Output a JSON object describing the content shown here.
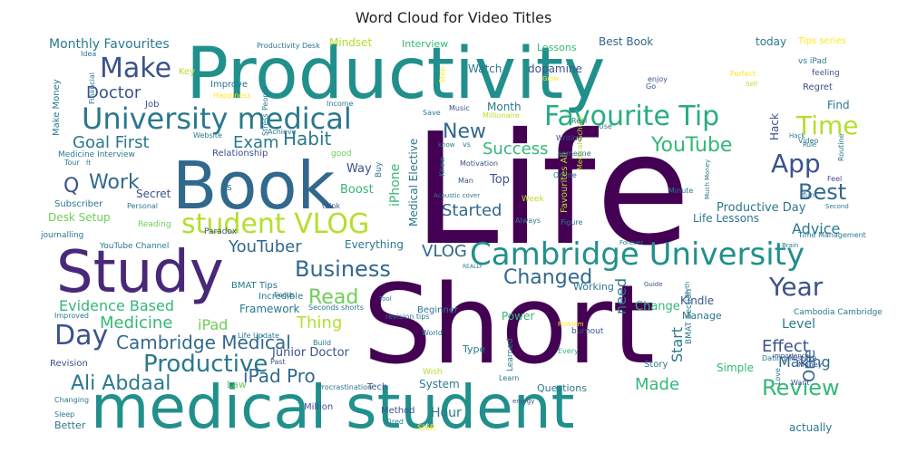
{
  "title": "Word Cloud for Video Titles",
  "words": [
    {
      "text": "Life",
      "color": "#440154"
    },
    {
      "text": "Short",
      "color": "#440154"
    },
    {
      "text": "Productivity",
      "color": "#21908c"
    },
    {
      "text": "medical student",
      "color": "#21908c"
    },
    {
      "text": "Book",
      "color": "#31688e"
    },
    {
      "text": "Study",
      "color": "#482878"
    },
    {
      "text": "Cambridge University",
      "color": "#21908c"
    },
    {
      "text": "University medical",
      "color": "#2a788e"
    },
    {
      "text": "student VLOG",
      "color": "#b5de2b"
    },
    {
      "text": "Make",
      "color": "#3b528b"
    },
    {
      "text": "Favourite Tip",
      "color": "#27ad81"
    },
    {
      "text": "Time",
      "color": "#b5de2b"
    },
    {
      "text": "App",
      "color": "#3b528b"
    },
    {
      "text": "Business",
      "color": "#31688e"
    },
    {
      "text": "Year",
      "color": "#3b528b"
    },
    {
      "text": "Day",
      "color": "#3b528b"
    },
    {
      "text": "Productive",
      "color": "#2a788e"
    },
    {
      "text": "Review",
      "color": "#35b779"
    },
    {
      "text": "Changed",
      "color": "#31688e"
    },
    {
      "text": "New",
      "color": "#31688e"
    },
    {
      "text": "YouTube",
      "color": "#35b779"
    },
    {
      "text": "Best",
      "color": "#31688e"
    },
    {
      "text": "Read",
      "color": "#6ece58"
    },
    {
      "text": "Work",
      "color": "#31688e"
    },
    {
      "text": "Habit",
      "color": "#2a788e"
    },
    {
      "text": "Ali Abdaal",
      "color": "#2a788e"
    },
    {
      "text": "iPad Pro",
      "color": "#31688e"
    },
    {
      "text": "Cambridge Medical",
      "color": "#31688e"
    },
    {
      "text": "Goal First",
      "color": "#2a788e"
    },
    {
      "text": "Exam",
      "color": "#2a788e"
    },
    {
      "text": "Success",
      "color": "#35b779"
    },
    {
      "text": "Started",
      "color": "#31688e"
    },
    {
      "text": "Advice",
      "color": "#2a788e"
    },
    {
      "text": "YouTuber",
      "color": "#31688e"
    },
    {
      "text": "VLOG",
      "color": "#31688e"
    },
    {
      "text": "Effect",
      "color": "#3b528b"
    },
    {
      "text": "Evidence Based",
      "color": "#35b779"
    },
    {
      "text": "Medicine",
      "color": "#35b779"
    },
    {
      "text": "Thing",
      "color": "#b5de2b"
    },
    {
      "text": "Doctor",
      "color": "#3b528b"
    },
    {
      "text": "Monthly Favourites",
      "color": "#2a788e"
    },
    {
      "text": "One",
      "color": "#31688e"
    },
    {
      "text": "Made",
      "color": "#35b779"
    },
    {
      "text": "Making",
      "color": "#31688e"
    },
    {
      "text": "Start",
      "color": "#2a788e"
    },
    {
      "text": "iPad",
      "color": "#6ece58"
    },
    {
      "text": "Q",
      "color": "#3b528b"
    },
    {
      "text": "Level",
      "color": "#2a788e"
    },
    {
      "text": "Best Book",
      "color": "#31688e"
    },
    {
      "text": "Productive Day",
      "color": "#2a788e"
    },
    {
      "text": "Life Lessons",
      "color": "#2a788e"
    },
    {
      "text": "need",
      "color": "#2a788e"
    },
    {
      "text": "Hour",
      "color": "#2a788e"
    },
    {
      "text": "Framework",
      "color": "#2a788e"
    },
    {
      "text": "Junior Doctor",
      "color": "#3b528b"
    },
    {
      "text": "iPhone",
      "color": "#35b779"
    },
    {
      "text": "Medical Elective",
      "color": "#2a788e"
    },
    {
      "text": "Month",
      "color": "#2a788e"
    },
    {
      "text": "Watch",
      "color": "#2a788e"
    },
    {
      "text": "dopamine",
      "color": "#3b528b"
    },
    {
      "text": "Top",
      "color": "#3b528b"
    },
    {
      "text": "Boost",
      "color": "#35b779"
    },
    {
      "text": "Change",
      "color": "#35b779"
    },
    {
      "text": "Manage",
      "color": "#2a788e"
    },
    {
      "text": "Kindle",
      "color": "#3b528b"
    },
    {
      "text": "Everything",
      "color": "#2a788e"
    },
    {
      "text": "Desk Setup",
      "color": "#6ece58"
    },
    {
      "text": "Secret",
      "color": "#3b528b"
    },
    {
      "text": "Way",
      "color": "#3b528b"
    },
    {
      "text": "Mindset",
      "color": "#b5de2b"
    },
    {
      "text": "Interview",
      "color": "#35b779"
    },
    {
      "text": "Lessons",
      "color": "#35b779"
    },
    {
      "text": "Tips series",
      "color": "#fde725"
    },
    {
      "text": "today",
      "color": "#2a788e"
    },
    {
      "text": "Find",
      "color": "#2a788e"
    },
    {
      "text": "Hack",
      "color": "#3b528b"
    },
    {
      "text": "Questions",
      "color": "#2a788e"
    },
    {
      "text": "System",
      "color": "#2a788e"
    },
    {
      "text": "Type",
      "color": "#2a788e"
    },
    {
      "text": "Power",
      "color": "#35b779"
    },
    {
      "text": "Working",
      "color": "#2a788e"
    },
    {
      "text": "Beginner",
      "color": "#2a788e"
    },
    {
      "text": "Story",
      "color": "#2a788e"
    },
    {
      "text": "Simple",
      "color": "#35b779"
    },
    {
      "text": "actually",
      "color": "#2a788e"
    },
    {
      "text": "Method",
      "color": "#3b528b"
    },
    {
      "text": "Million",
      "color": "#3b528b"
    },
    {
      "text": "Better",
      "color": "#2a788e"
    },
    {
      "text": "Revision",
      "color": "#3b528b"
    },
    {
      "text": "Law",
      "color": "#6ece58"
    },
    {
      "text": "Incredible",
      "color": "#2a788e"
    },
    {
      "text": "BMAT Tips",
      "color": "#2a788e"
    },
    {
      "text": "Improve",
      "color": "#2a788e"
    },
    {
      "text": "Job",
      "color": "#3b528b"
    },
    {
      "text": "Make Money",
      "color": "#2a788e"
    },
    {
      "text": "Relationship",
      "color": "#3b528b"
    },
    {
      "text": "Medicine Interview",
      "color": "#2a788e"
    },
    {
      "text": "Subscriber",
      "color": "#2a788e"
    },
    {
      "text": "journalling",
      "color": "#2a788e"
    },
    {
      "text": "YouTube Channel",
      "color": "#2a788e"
    },
    {
      "text": "Reading",
      "color": "#6ece58"
    },
    {
      "text": "Paradox",
      "color": "#3b528b"
    },
    {
      "text": "Improved",
      "color": "#2a788e"
    },
    {
      "text": "Tech",
      "color": "#3b528b"
    },
    {
      "text": "Learned",
      "color": "#2a788e"
    },
    {
      "text": "Cambodia Cambridge",
      "color": "#2a788e"
    },
    {
      "text": "Routine",
      "color": "#2a788e"
    },
    {
      "text": "vs iPad",
      "color": "#2a788e"
    },
    {
      "text": "Regret",
      "color": "#3b528b"
    },
    {
      "text": "feeling",
      "color": "#3b528b"
    },
    {
      "text": "Perfect",
      "color": "#fde725"
    },
    {
      "text": "Productivity Desk",
      "color": "#2a788e"
    },
    {
      "text": "Key",
      "color": "#b5de2b"
    },
    {
      "text": "Idea",
      "color": "#2a788e"
    },
    {
      "text": "Happiness",
      "color": "#fde725"
    },
    {
      "text": "Financial",
      "color": "#2a788e"
    },
    {
      "text": "People",
      "color": "#2a788e"
    },
    {
      "text": "Stress",
      "color": "#2a788e"
    },
    {
      "text": "Website",
      "color": "#2a788e"
    },
    {
      "text": "Achieve",
      "color": "#2a788e"
    },
    {
      "text": "Income",
      "color": "#2a788e"
    },
    {
      "text": "Save",
      "color": "#2a788e"
    },
    {
      "text": "Music",
      "color": "#3b528b"
    },
    {
      "text": "Millionaire",
      "color": "#b5de2b"
    },
    {
      "text": "Motivation",
      "color": "#3b528b"
    },
    {
      "text": "Acoustic cover",
      "color": "#2a788e"
    },
    {
      "text": "Online",
      "color": "#2a788e"
    },
    {
      "text": "Writing",
      "color": "#3b528b"
    },
    {
      "text": "Medical School",
      "color": "#b5de2b"
    },
    {
      "text": "Favourites Ali",
      "color": "#b5de2b"
    },
    {
      "text": "Week",
      "color": "#b5de2b"
    },
    {
      "text": "Always",
      "color": "#2a788e"
    },
    {
      "text": "Figure",
      "color": "#2a788e"
    },
    {
      "text": "Minute",
      "color": "#2a788e"
    },
    {
      "text": "Time Management",
      "color": "#2a788e"
    },
    {
      "text": "Video",
      "color": "#2a788e"
    },
    {
      "text": "Feel",
      "color": "#3b528b"
    },
    {
      "text": "Second",
      "color": "#2a788e"
    },
    {
      "text": "Brain",
      "color": "#2a788e"
    },
    {
      "text": "Forever",
      "color": "#2a788e"
    },
    {
      "text": "Wish",
      "color": "#b5de2b"
    },
    {
      "text": "Procrastination",
      "color": "#2a788e"
    },
    {
      "text": "Learn",
      "color": "#2a788e"
    },
    {
      "text": "burnout",
      "color": "#3b528b"
    },
    {
      "text": "revision tips",
      "color": "#2a788e"
    },
    {
      "text": "World",
      "color": "#2a788e"
    },
    {
      "text": "Every",
      "color": "#35b779"
    },
    {
      "text": "BMAT Section",
      "color": "#2a788e"
    },
    {
      "text": "Guide",
      "color": "#3b528b"
    },
    {
      "text": "Myth",
      "color": "#2a788e"
    },
    {
      "text": "Dating",
      "color": "#2a788e"
    },
    {
      "text": "Mistake",
      "color": "#3b528b"
    },
    {
      "text": "Money",
      "color": "#3b528b"
    },
    {
      "text": "Love",
      "color": "#2a788e"
    },
    {
      "text": "Want",
      "color": "#3b528b"
    },
    {
      "text": "importance",
      "color": "#3b528b"
    },
    {
      "text": "Build",
      "color": "#2a788e"
    },
    {
      "text": "Life Update",
      "color": "#2a788e"
    },
    {
      "text": "Seconds shorts",
      "color": "#2a788e"
    },
    {
      "text": "Focus",
      "color": "#2a788e"
    },
    {
      "text": "Tool",
      "color": "#2a788e"
    },
    {
      "text": "Past",
      "color": "#3b528b"
    },
    {
      "text": "Sleep",
      "color": "#2a788e"
    },
    {
      "text": "Changing",
      "color": "#2a788e"
    },
    {
      "text": "Tired",
      "color": "#2a788e"
    },
    {
      "text": "Shift",
      "color": "#fde725"
    },
    {
      "text": "energy",
      "color": "#3b528b"
    },
    {
      "text": "Personal",
      "color": "#2a788e"
    },
    {
      "text": "good",
      "color": "#6ece58"
    },
    {
      "text": "Buy",
      "color": "#2a788e"
    },
    {
      "text": "Man",
      "color": "#3b528b"
    },
    {
      "text": "Knew",
      "color": "#2a788e"
    },
    {
      "text": "know",
      "color": "#2a788e"
    },
    {
      "text": "vs",
      "color": "#2a788e"
    },
    {
      "text": "Real",
      "color": "#2a788e"
    },
    {
      "text": "Use",
      "color": "#2a788e"
    },
    {
      "text": "think",
      "color": "#3b528b"
    },
    {
      "text": "fun",
      "color": "#2a788e"
    },
    {
      "text": "Go",
      "color": "#3b528b"
    },
    {
      "text": "enjoy",
      "color": "#3b528b"
    },
    {
      "text": "Self",
      "color": "#b5de2b"
    },
    {
      "text": "Rule",
      "color": "#2a788e"
    },
    {
      "text": "Much Money",
      "color": "#2a788e"
    },
    {
      "text": "someone",
      "color": "#2a788e"
    },
    {
      "text": "Step",
      "color": "#fde725"
    },
    {
      "text": "Grow",
      "color": "#fde725"
    },
    {
      "text": "Tour",
      "color": "#2a788e"
    },
    {
      "text": "ft",
      "color": "#2a788e"
    },
    {
      "text": "Problem",
      "color": "#fde725"
    },
    {
      "text": "REALLY",
      "color": "#2a788e"
    },
    {
      "text": "Hack",
      "color": "#2a788e"
    },
    {
      "text": "s",
      "color": "#2a788e"
    }
  ]
}
